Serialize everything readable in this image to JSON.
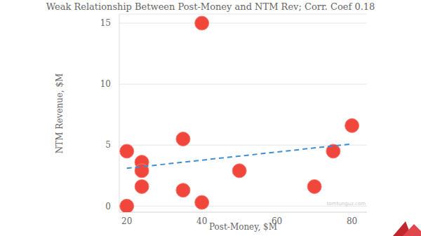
{
  "chart_data": {
    "type": "scatter",
    "title": "Weak Relationship Between Post-Money and NTM Rev; Corr. Coef 0.18",
    "x_label": "Post-Money, $M",
    "y_label": "NTM Revenue, $M",
    "x": [
      20,
      20,
      24,
      24,
      24,
      35,
      35,
      40,
      40,
      50,
      70,
      75,
      80
    ],
    "values": [
      0,
      4.5,
      3.6,
      2.9,
      1.6,
      5.5,
      1.3,
      15,
      0.3,
      2.9,
      1.6,
      4.5,
      6.6
    ],
    "color": "#f0463c",
    "marker": "circle",
    "trend": {
      "x": [
        20,
        80
      ],
      "values": [
        3.1,
        5.1
      ],
      "color": "#3d8fd4",
      "line_style": "dashed"
    },
    "xlim": [
      18,
      84
    ],
    "ylim": [
      -0.5,
      15.75
    ],
    "xticks": [
      20,
      40,
      60,
      80
    ],
    "yticks": [
      0,
      5,
      10,
      15
    ],
    "grid": true,
    "annotations": [
      "tomtunguz.com"
    ]
  }
}
